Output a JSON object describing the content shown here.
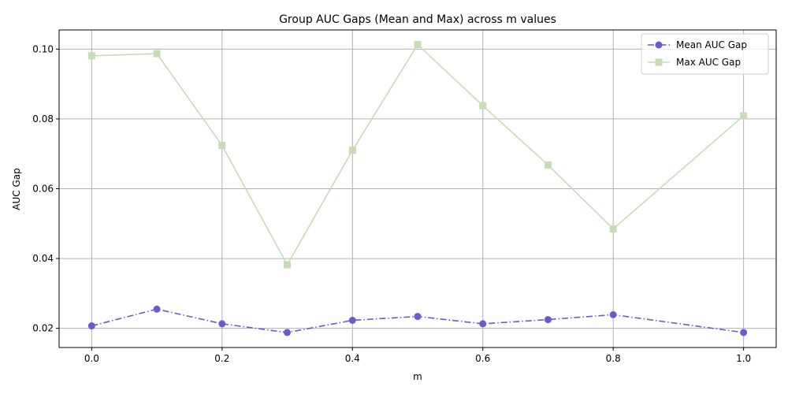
{
  "chart_data": {
    "type": "line",
    "title": "Group AUC Gaps (Mean and Max) across m values",
    "xlabel": "m",
    "ylabel": "AUC Gap",
    "x": [
      0.0,
      0.1,
      0.2,
      0.3,
      0.4,
      0.5,
      0.6,
      0.7,
      0.8,
      1.0
    ],
    "xlim": [
      -0.05,
      1.05
    ],
    "ylim": [
      0.0145,
      0.1055
    ],
    "xticks": [
      0.0,
      0.2,
      0.4,
      0.6,
      0.8,
      1.0
    ],
    "xtick_labels": [
      "0.0",
      "0.2",
      "0.4",
      "0.6",
      "0.8",
      "1.0"
    ],
    "yticks": [
      0.02,
      0.04,
      0.06,
      0.08,
      0.1
    ],
    "ytick_labels": [
      "0.02",
      "0.04",
      "0.06",
      "0.08",
      "0.10"
    ],
    "grid": true,
    "legend_position": "top-right",
    "series": [
      {
        "name": "Mean AUC Gap",
        "values": [
          0.0207,
          0.0255,
          0.0213,
          0.0188,
          0.0223,
          0.0234,
          0.0213,
          0.0225,
          0.0239,
          0.0188
        ],
        "color": "#6a5acd",
        "marker": "circle",
        "line_style": "dashdot"
      },
      {
        "name": "Max AUC Gap",
        "values": [
          0.0981,
          0.0987,
          0.0724,
          0.0382,
          0.071,
          0.1013,
          0.0838,
          0.0668,
          0.0485,
          0.0809
        ],
        "color": "#c5dcb4",
        "marker": "square",
        "line_style": "solid"
      }
    ]
  }
}
